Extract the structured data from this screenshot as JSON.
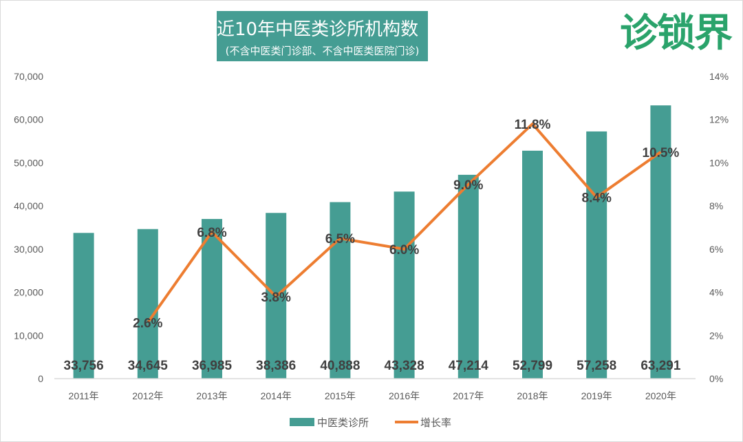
{
  "chart_data": {
    "type": "bar+line",
    "title": "近10年中医类诊所机构数（个）",
    "subtitle": "(不含中医类门诊部、不含中医类医院门诊)",
    "categories": [
      "2011年",
      "2012年",
      "2013年",
      "2014年",
      "2015年",
      "2016年",
      "2017年",
      "2018年",
      "2019年",
      "2020年"
    ],
    "series": [
      {
        "name": "中医类诊所",
        "type": "bar",
        "axis": "left",
        "color": "#459d93",
        "values": [
          33756,
          34645,
          36985,
          38386,
          40888,
          43328,
          47214,
          52799,
          57258,
          63291
        ],
        "labels": [
          "33,756",
          "34,645",
          "36,985",
          "38,386",
          "40,888",
          "43,328",
          "47,214",
          "52,799",
          "57,258",
          "63,291"
        ]
      },
      {
        "name": "增长率",
        "type": "line",
        "axis": "right",
        "color": "#ed7d31",
        "values": [
          null,
          2.6,
          6.8,
          3.8,
          6.5,
          6.0,
          9.0,
          11.8,
          8.4,
          10.5
        ],
        "labels": [
          "",
          "2.6%",
          "6.8%",
          "3.8%",
          "6.5%",
          "6.0%",
          "9.0%",
          "11.8%",
          "8.4%",
          "10.5%"
        ]
      }
    ],
    "y_left": {
      "ylim": [
        0,
        70000
      ],
      "ticks": [
        "0",
        "10,000",
        "20,000",
        "30,000",
        "40,000",
        "50,000",
        "60,000",
        "70,000"
      ]
    },
    "y_right": {
      "ylim": [
        0,
        14
      ],
      "ticks": [
        "0%",
        "2%",
        "4%",
        "6%",
        "8%",
        "10%",
        "12%",
        "14%"
      ]
    },
    "grid": false,
    "legend": "bottom"
  },
  "logo": "诊锁界"
}
